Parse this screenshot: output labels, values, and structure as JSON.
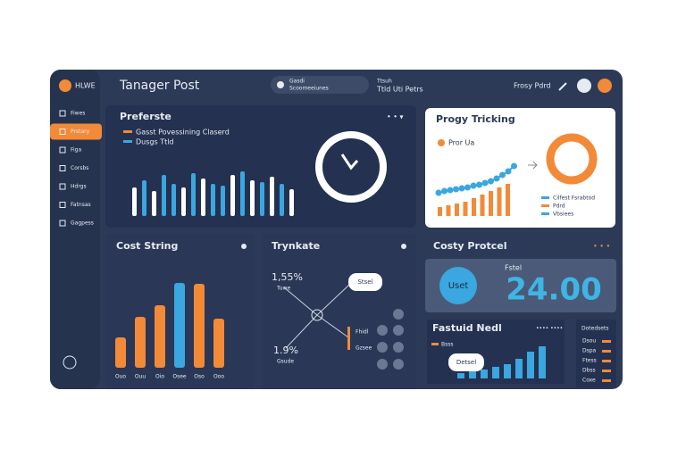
{
  "header": {
    "logo": "HLWE",
    "title": "Tanager Post",
    "search": [
      "Gasdi",
      "Scoomeeiunes"
    ],
    "meta": [
      "Ttsuh",
      "Ttld Uti Petrs"
    ],
    "user": "Frosy Pdrd"
  },
  "sidebar": [
    "Fiwes",
    "Prstary",
    "Figa",
    "Corsbs",
    "Hdrgs",
    "Fatnsas",
    "Gagpess"
  ],
  "preferste": {
    "title": "Preferste",
    "legend": [
      "Gasst Povessining Claserd",
      "Dusgs Ttld"
    ],
    "values": [
      32,
      40,
      28,
      46,
      36,
      32,
      48,
      42,
      36,
      34,
      46,
      50,
      40,
      38,
      44,
      36,
      30
    ],
    "colors": [
      "#ffffff",
      "#3aa7e0",
      "#ffffff",
      "#3aa7e0",
      "#3aa7e0",
      "#ffffff",
      "#3aa7e0",
      "#ffffff",
      "#3aa7e0",
      "#3aa7e0",
      "#ffffff",
      "#3aa7e0",
      "#ffffff",
      "#3aa7e0",
      "#ffffff",
      "#3aa7e0",
      "#ffffff"
    ]
  },
  "tracking": {
    "title": "Progy Tricking",
    "legend": "Pror Ua",
    "values": [
      10,
      12,
      14,
      16,
      20,
      24,
      28,
      32,
      36
    ],
    "dots": [
      22,
      24,
      25,
      26,
      27,
      28,
      30,
      31,
      33,
      35,
      38,
      42,
      46,
      52
    ],
    "list": [
      "Cilfest Fsrabtod",
      "Pdrd",
      "Vbsiees"
    ]
  },
  "cost": {
    "title": "Cost String",
    "categories": [
      "Ouo",
      "Ouu",
      "Oio",
      "Osee",
      "Oso",
      "Ooo"
    ],
    "values": [
      34,
      57,
      70,
      95,
      94,
      55
    ],
    "colors": [
      "#f28a38",
      "#f28a38",
      "#f28a38",
      "#3aa7e0",
      "#f28a38",
      "#f28a38"
    ]
  },
  "trynkate": {
    "title": "Trynkate",
    "labels": [
      "1,55%",
      "Tuwe",
      "1.9%",
      "Gsude",
      "Stsel",
      "Fhidl",
      "Gzsee"
    ]
  },
  "protcel": {
    "title": "Costy Protcel",
    "badge": "Uset",
    "caption": "Fstel",
    "value": "24.00"
  },
  "fastuid": {
    "title": "Fastuid Nedl",
    "legend": "Bsss",
    "bubble": "Detsel",
    "values": [
      6,
      8,
      10,
      13,
      16,
      22,
      30,
      36
    ]
  },
  "datasets": {
    "title": "Dotedsets",
    "items": [
      "Dsou",
      "Dspa",
      "Ftess",
      "Dbss",
      "Coxe"
    ]
  }
}
